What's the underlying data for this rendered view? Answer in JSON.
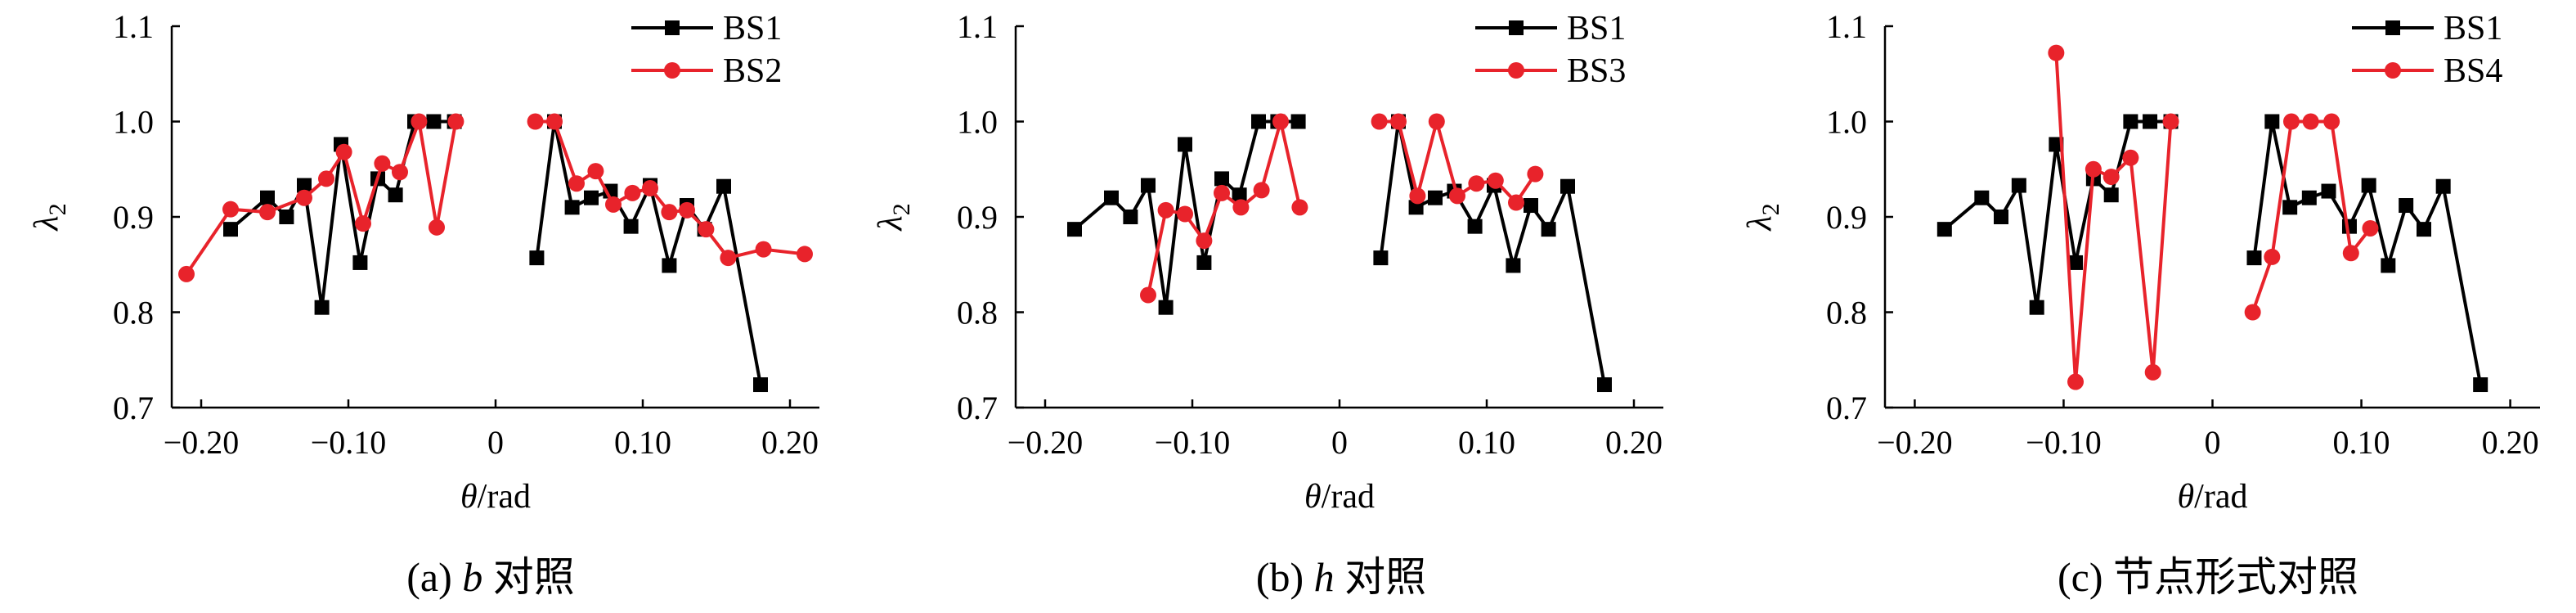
{
  "figure": {
    "panels_count": 3
  },
  "chart_data": [
    {
      "type": "line",
      "caption_prefix": "(a) ",
      "caption_var": "b",
      "caption_suffix": " 对照",
      "xlabel_var": "θ",
      "xlabel_unit": "/rad",
      "ylabel_var": "λ",
      "ylabel_sub": "2",
      "xlim": [
        -0.22,
        0.22
      ],
      "ylim": [
        0.7,
        1.1
      ],
      "xticks": [
        -0.2,
        -0.1,
        0,
        0.1,
        0.2
      ],
      "xtick_labels": [
        "−0.20",
        "−0.10",
        "0",
        "0.10",
        "0.20"
      ],
      "yticks": [
        0.7,
        0.8,
        0.9,
        1.0,
        1.1
      ],
      "ytick_labels": [
        "0.7",
        "0.8",
        "0.9",
        "1.0",
        "1.1"
      ],
      "legend": "top-right",
      "grid": false,
      "series": [
        {
          "name": "BS1",
          "color": "#000000",
          "marker": "square",
          "segments": [
            [
              [
                -0.18,
                0.887
              ],
              [
                -0.155,
                0.92
              ],
              [
                -0.142,
                0.9
              ],
              [
                -0.13,
                0.933
              ],
              [
                -0.118,
                0.805
              ],
              [
                -0.105,
                0.976
              ],
              [
                -0.092,
                0.852
              ],
              [
                -0.08,
                0.94
              ],
              [
                -0.068,
                0.923
              ],
              [
                -0.055,
                1.0
              ],
              [
                -0.042,
                1.0
              ],
              [
                -0.028,
                1.0
              ]
            ],
            [
              [
                0.028,
                0.857
              ],
              [
                0.04,
                1.0
              ],
              [
                0.052,
                0.91
              ],
              [
                0.065,
                0.92
              ],
              [
                0.078,
                0.927
              ],
              [
                0.092,
                0.89
              ],
              [
                0.105,
                0.933
              ],
              [
                0.118,
                0.849
              ],
              [
                0.13,
                0.912
              ],
              [
                0.142,
                0.887
              ],
              [
                0.155,
                0.932
              ],
              [
                0.18,
                0.724
              ]
            ]
          ]
        },
        {
          "name": "BS2",
          "color": "#e8232b",
          "marker": "circle",
          "segments": [
            [
              [
                -0.21,
                0.84
              ],
              [
                -0.18,
                0.908
              ],
              [
                -0.155,
                0.905
              ],
              [
                -0.13,
                0.92
              ],
              [
                -0.115,
                0.94
              ],
              [
                -0.103,
                0.968
              ],
              [
                -0.09,
                0.893
              ],
              [
                -0.077,
                0.956
              ],
              [
                -0.065,
                0.947
              ],
              [
                -0.052,
                1.0
              ],
              [
                -0.04,
                0.889
              ],
              [
                -0.027,
                1.0
              ]
            ],
            [
              [
                0.027,
                1.0
              ],
              [
                0.04,
                1.0
              ],
              [
                0.055,
                0.935
              ],
              [
                0.068,
                0.948
              ],
              [
                0.08,
                0.913
              ],
              [
                0.093,
                0.925
              ],
              [
                0.105,
                0.93
              ],
              [
                0.118,
                0.905
              ],
              [
                0.13,
                0.907
              ],
              [
                0.143,
                0.887
              ],
              [
                0.158,
                0.857
              ],
              [
                0.182,
                0.866
              ],
              [
                0.21,
                0.861
              ]
            ]
          ]
        }
      ]
    },
    {
      "type": "line",
      "caption_prefix": "(b) ",
      "caption_var": "h",
      "caption_suffix": " 对照",
      "xlabel_var": "θ",
      "xlabel_unit": "/rad",
      "ylabel_var": "λ",
      "ylabel_sub": "2",
      "xlim": [
        -0.22,
        0.22
      ],
      "ylim": [
        0.7,
        1.1
      ],
      "xticks": [
        -0.2,
        -0.1,
        0,
        0.1,
        0.2
      ],
      "xtick_labels": [
        "−0.20",
        "−0.10",
        "0",
        "0.10",
        "0.20"
      ],
      "yticks": [
        0.7,
        0.8,
        0.9,
        1.0,
        1.1
      ],
      "ytick_labels": [
        "0.7",
        "0.8",
        "0.9",
        "1.0",
        "1.1"
      ],
      "legend": "top-right",
      "grid": false,
      "series": [
        {
          "name": "BS1",
          "color": "#000000",
          "marker": "square",
          "segments": [
            [
              [
                -0.18,
                0.887
              ],
              [
                -0.155,
                0.92
              ],
              [
                -0.142,
                0.9
              ],
              [
                -0.13,
                0.933
              ],
              [
                -0.118,
                0.805
              ],
              [
                -0.105,
                0.976
              ],
              [
                -0.092,
                0.852
              ],
              [
                -0.08,
                0.94
              ],
              [
                -0.068,
                0.923
              ],
              [
                -0.055,
                1.0
              ],
              [
                -0.042,
                1.0
              ],
              [
                -0.028,
                1.0
              ]
            ],
            [
              [
                0.028,
                0.857
              ],
              [
                0.04,
                1.0
              ],
              [
                0.052,
                0.91
              ],
              [
                0.065,
                0.92
              ],
              [
                0.078,
                0.927
              ],
              [
                0.092,
                0.89
              ],
              [
                0.105,
                0.933
              ],
              [
                0.118,
                0.849
              ],
              [
                0.13,
                0.912
              ],
              [
                0.142,
                0.887
              ],
              [
                0.155,
                0.932
              ],
              [
                0.18,
                0.724
              ]
            ]
          ]
        },
        {
          "name": "BS3",
          "color": "#e8232b",
          "marker": "circle",
          "segments": [
            [
              [
                -0.13,
                0.818
              ],
              [
                -0.118,
                0.907
              ],
              [
                -0.105,
                0.903
              ],
              [
                -0.092,
                0.875
              ],
              [
                -0.08,
                0.925
              ],
              [
                -0.067,
                0.91
              ],
              [
                -0.053,
                0.928
              ],
              [
                -0.04,
                1.0
              ],
              [
                -0.027,
                0.91
              ]
            ],
            [
              [
                0.027,
                1.0
              ],
              [
                0.04,
                1.0
              ],
              [
                0.053,
                0.922
              ],
              [
                0.066,
                1.0
              ],
              [
                0.08,
                0.922
              ],
              [
                0.093,
                0.935
              ],
              [
                0.106,
                0.938
              ],
              [
                0.12,
                0.915
              ],
              [
                0.133,
                0.945
              ]
            ]
          ]
        }
      ]
    },
    {
      "type": "line",
      "caption_prefix": "(c) ",
      "caption_var": "",
      "caption_suffix": "节点形式对照",
      "xlabel_var": "θ",
      "xlabel_unit": "/rad",
      "ylabel_var": "λ",
      "ylabel_sub": "2",
      "xlim": [
        -0.22,
        0.22
      ],
      "ylim": [
        0.7,
        1.1
      ],
      "xticks": [
        -0.2,
        -0.1,
        0,
        0.1,
        0.2
      ],
      "xtick_labels": [
        "−0.20",
        "−0.10",
        "0",
        "0.10",
        "0.20"
      ],
      "yticks": [
        0.7,
        0.8,
        0.9,
        1.0,
        1.1
      ],
      "ytick_labels": [
        "0.7",
        "0.8",
        "0.9",
        "1.0",
        "1.1"
      ],
      "legend": "top-right",
      "grid": false,
      "series": [
        {
          "name": "BS1",
          "color": "#000000",
          "marker": "square",
          "segments": [
            [
              [
                -0.18,
                0.887
              ],
              [
                -0.155,
                0.92
              ],
              [
                -0.142,
                0.9
              ],
              [
                -0.13,
                0.933
              ],
              [
                -0.118,
                0.805
              ],
              [
                -0.105,
                0.976
              ],
              [
                -0.092,
                0.852
              ],
              [
                -0.08,
                0.94
              ],
              [
                -0.068,
                0.923
              ],
              [
                -0.055,
                1.0
              ],
              [
                -0.042,
                1.0
              ],
              [
                -0.028,
                1.0
              ]
            ],
            [
              [
                0.028,
                0.857
              ],
              [
                0.04,
                1.0
              ],
              [
                0.052,
                0.91
              ],
              [
                0.065,
                0.92
              ],
              [
                0.078,
                0.927
              ],
              [
                0.092,
                0.89
              ],
              [
                0.105,
                0.933
              ],
              [
                0.118,
                0.849
              ],
              [
                0.13,
                0.912
              ],
              [
                0.142,
                0.887
              ],
              [
                0.155,
                0.932
              ],
              [
                0.18,
                0.724
              ]
            ]
          ]
        },
        {
          "name": "BS4",
          "color": "#e8232b",
          "marker": "circle",
          "segments": [
            [
              [
                -0.105,
                1.072
              ],
              [
                -0.092,
                0.727
              ],
              [
                -0.08,
                0.95
              ],
              [
                -0.068,
                0.942
              ],
              [
                -0.055,
                0.962
              ],
              [
                -0.04,
                0.737
              ],
              [
                -0.028,
                1.0
              ]
            ],
            [
              [
                0.027,
                0.8
              ],
              [
                0.04,
                0.858
              ],
              [
                0.053,
                1.0
              ],
              [
                0.066,
                1.0
              ],
              [
                0.08,
                1.0
              ],
              [
                0.093,
                0.862
              ],
              [
                0.106,
                0.888
              ]
            ]
          ]
        }
      ]
    }
  ]
}
